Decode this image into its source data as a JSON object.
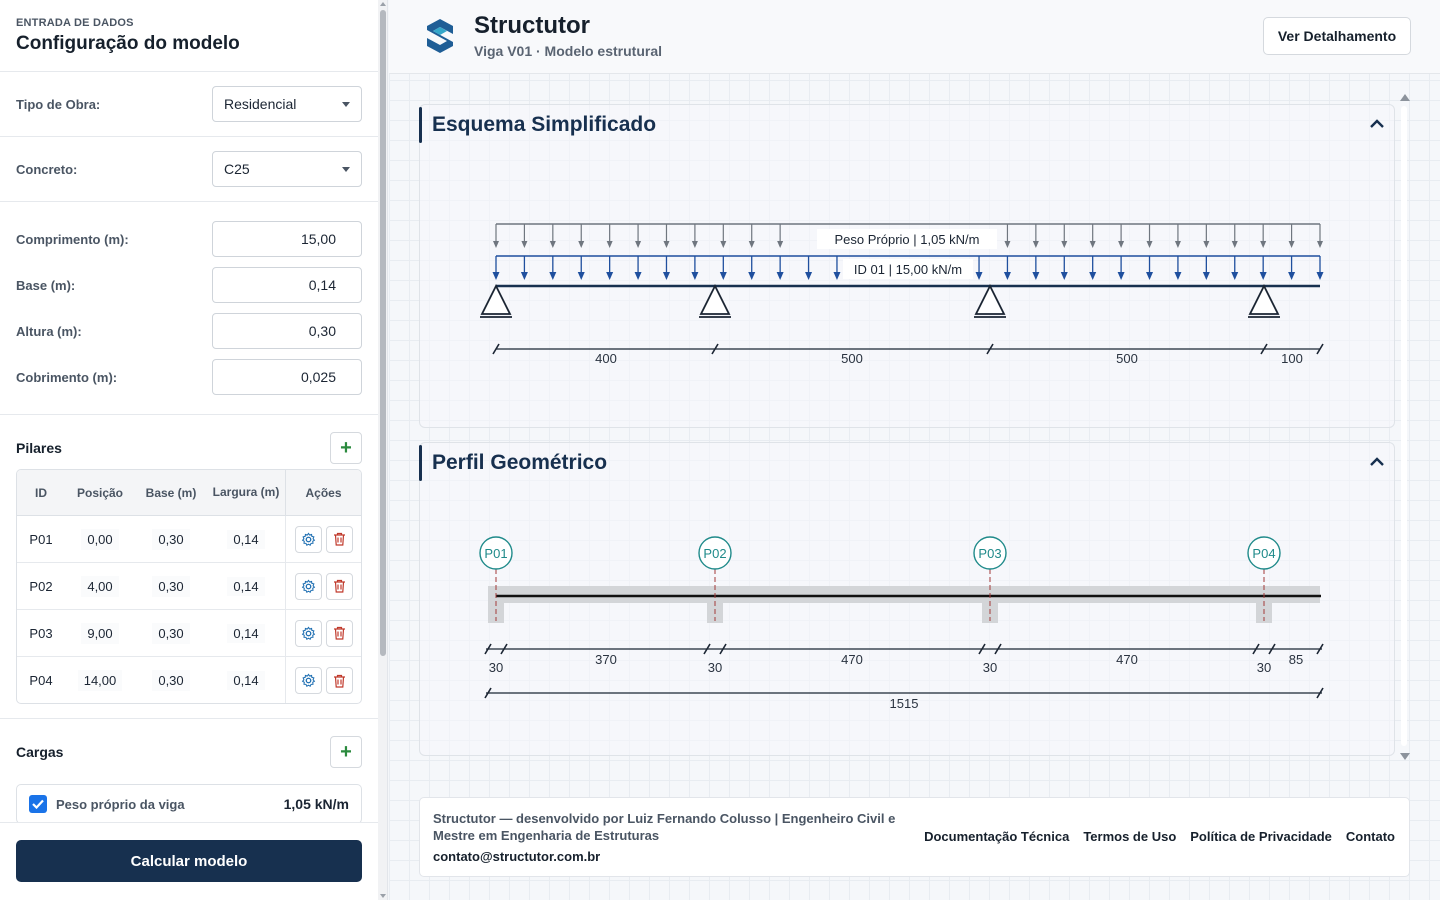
{
  "sidebar": {
    "kicker": "ENTRADA DE DADOS",
    "title": "Configuração do modelo",
    "tipo_obra": {
      "label": "Tipo de Obra:",
      "value": "Residencial"
    },
    "concreto": {
      "label": "Concreto:",
      "value": "C25"
    },
    "comprimento": {
      "label": "Comprimento (m):",
      "value": "15,00"
    },
    "base": {
      "label": "Base (m):",
      "value": "0,14"
    },
    "altura": {
      "label": "Altura (m):",
      "value": "0,30"
    },
    "cobrimento": {
      "label": "Cobrimento (m):",
      "value": "0,025"
    },
    "pilares": {
      "title": "Pilares",
      "add_label": "+",
      "headers": [
        "ID",
        "Posição",
        "Base (m)",
        "Largura (m)",
        "Ações"
      ],
      "rows": [
        {
          "id": "P01",
          "posicao": "0,00",
          "base": "0,30",
          "largura": "0,14"
        },
        {
          "id": "P02",
          "posicao": "4,00",
          "base": "0,30",
          "largura": "0,14"
        },
        {
          "id": "P03",
          "posicao": "9,00",
          "base": "0,30",
          "largura": "0,14"
        },
        {
          "id": "P04",
          "posicao": "14,00",
          "base": "0,30",
          "largura": "0,14"
        }
      ]
    },
    "cargas": {
      "title": "Cargas",
      "add_label": "+",
      "items": [
        {
          "label": "Peso próprio da viga",
          "value": "1,05 kN/m",
          "checked": true
        }
      ]
    },
    "calc_button": "Calcular modelo"
  },
  "header": {
    "app_title": "Structutor",
    "subtitle": "Viga V01 · Modelo estrutural",
    "detail_button": "Ver Detalhamento"
  },
  "esquema": {
    "title": "Esquema Simplificado",
    "load_labels": [
      "Peso Próprio | 1,05 kN/m",
      "ID 01 | 15,00 kN/m"
    ],
    "spans": [
      "400",
      "500",
      "500",
      "100"
    ]
  },
  "perfil": {
    "title": "Perfil Geométrico",
    "pillars": [
      "P01",
      "P02",
      "P03",
      "P04"
    ],
    "pillar_widths": [
      "30",
      "30",
      "30",
      "30"
    ],
    "clear_spans": [
      "370",
      "470",
      "470",
      "85"
    ],
    "total": "1515"
  },
  "footer": {
    "text": "Structutor — desenvolvido por Luiz Fernando Colusso | Engenheiro Civil e Mestre em Engenharia de Estruturas",
    "email": "contato@structutor.com.br",
    "links": [
      "Documentação Técnica",
      "Termos de Uso",
      "Política de Privacidade",
      "Contato"
    ]
  },
  "colors": {
    "primary": "#17304f",
    "accent_teal": "#1f8a8a",
    "load_blue": "#1f4f9e",
    "add_green": "#2b8a3e",
    "delete_red": "#c0392b"
  }
}
